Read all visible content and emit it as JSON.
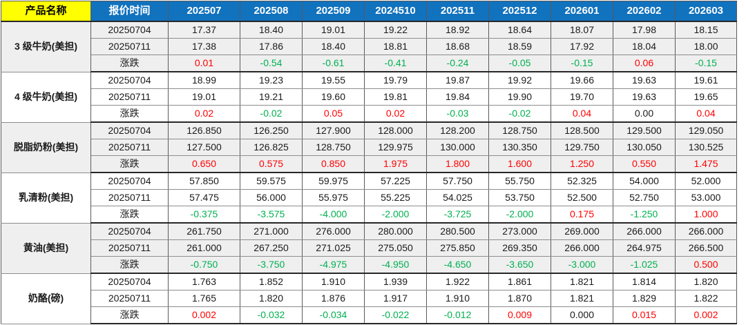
{
  "colors": {
    "header_bg": "#1172be",
    "header_text": "#ffffff",
    "product_header_bg": "#ffff00",
    "up_red": "#ff0000",
    "down_green": "#00b050",
    "neutral_black": "#1a1a1a",
    "band_gray": "#efefef"
  },
  "chart_data": {
    "type": "table",
    "product_header": "产品名称",
    "time_header": "报价时间",
    "period_headers": [
      "202507",
      "202508",
      "202509",
      "2024510",
      "202511",
      "202512",
      "202601",
      "202602",
      "202603"
    ],
    "change_row_label": "涨跌",
    "groups": [
      {
        "product": "3 级牛奶(美担)",
        "shaded": true,
        "rows": [
          {
            "label": "20250704",
            "type": "price",
            "values": [
              "17.37",
              "18.40",
              "19.01",
              "19.22",
              "18.92",
              "18.64",
              "18.07",
              "17.98",
              "18.15"
            ]
          },
          {
            "label": "20250711",
            "type": "price",
            "values": [
              "17.38",
              "17.86",
              "18.40",
              "18.81",
              "18.68",
              "18.59",
              "17.92",
              "18.04",
              "18.00"
            ]
          },
          {
            "label": "涨跌",
            "type": "change",
            "values": [
              "0.01",
              "-0.54",
              "-0.61",
              "-0.41",
              "-0.24",
              "-0.05",
              "-0.15",
              "0.06",
              "-0.15"
            ]
          }
        ]
      },
      {
        "product": "4 级牛奶(美担)",
        "shaded": false,
        "rows": [
          {
            "label": "20250704",
            "type": "price",
            "values": [
              "18.99",
              "19.23",
              "19.55",
              "19.79",
              "19.87",
              "19.92",
              "19.66",
              "19.63",
              "19.61"
            ]
          },
          {
            "label": "20250711",
            "type": "price",
            "values": [
              "19.01",
              "19.21",
              "19.60",
              "19.81",
              "19.84",
              "19.90",
              "19.70",
              "19.63",
              "19.65"
            ]
          },
          {
            "label": "涨跌",
            "type": "change",
            "values": [
              "0.02",
              "-0.02",
              "0.05",
              "0.02",
              "-0.03",
              "-0.02",
              "0.04",
              "0.00",
              "0.04"
            ]
          }
        ]
      },
      {
        "product": "脱脂奶粉(美担)",
        "shaded": true,
        "rows": [
          {
            "label": "20250704",
            "type": "price",
            "values": [
              "126.850",
              "126.250",
              "127.900",
              "128.000",
              "128.200",
              "128.750",
              "128.500",
              "129.500",
              "129.050"
            ]
          },
          {
            "label": "20250711",
            "type": "price",
            "values": [
              "127.500",
              "126.825",
              "128.750",
              "129.975",
              "130.000",
              "130.350",
              "129.750",
              "130.050",
              "130.525"
            ]
          },
          {
            "label": "涨跌",
            "type": "change",
            "values": [
              "0.650",
              "0.575",
              "0.850",
              "1.975",
              "1.800",
              "1.600",
              "1.250",
              "0.550",
              "1.475"
            ]
          }
        ]
      },
      {
        "product": "乳清粉(美担)",
        "shaded": false,
        "rows": [
          {
            "label": "20250704",
            "type": "price",
            "values": [
              "57.850",
              "59.575",
              "59.975",
              "57.225",
              "57.750",
              "55.750",
              "52.325",
              "54.000",
              "52.000"
            ]
          },
          {
            "label": "20250711",
            "type": "price",
            "values": [
              "57.475",
              "56.000",
              "55.975",
              "55.225",
              "54.025",
              "53.750",
              "52.500",
              "52.750",
              "53.000"
            ]
          },
          {
            "label": "涨跌",
            "type": "change",
            "values": [
              "-0.375",
              "-3.575",
              "-4.000",
              "-2.000",
              "-3.725",
              "-2.000",
              "0.175",
              "-1.250",
              "1.000"
            ]
          }
        ]
      },
      {
        "product": "黄油(美担)",
        "shaded": true,
        "rows": [
          {
            "label": "20250704",
            "type": "price",
            "values": [
              "261.750",
              "271.000",
              "276.000",
              "280.000",
              "280.500",
              "273.000",
              "269.000",
              "266.000",
              "266.000"
            ]
          },
          {
            "label": "20250711",
            "type": "price",
            "values": [
              "261.000",
              "267.250",
              "271.025",
              "275.050",
              "275.850",
              "269.350",
              "266.000",
              "264.975",
              "266.500"
            ]
          },
          {
            "label": "涨跌",
            "type": "change",
            "values": [
              "-0.750",
              "-3.750",
              "-4.975",
              "-4.950",
              "-4.650",
              "-3.650",
              "-3.000",
              "-1.025",
              "0.500"
            ]
          }
        ]
      },
      {
        "product": "奶酪(磅)",
        "shaded": false,
        "rows": [
          {
            "label": "20250704",
            "type": "price",
            "values": [
              "1.763",
              "1.852",
              "1.910",
              "1.939",
              "1.922",
              "1.861",
              "1.821",
              "1.814",
              "1.820"
            ]
          },
          {
            "label": "20250711",
            "type": "price",
            "values": [
              "1.765",
              "1.820",
              "1.876",
              "1.917",
              "1.910",
              "1.870",
              "1.821",
              "1.829",
              "1.822"
            ]
          },
          {
            "label": "涨跌",
            "type": "change",
            "values": [
              "0.002",
              "-0.032",
              "-0.034",
              "-0.022",
              "-0.012",
              "0.009",
              "0.000",
              "0.015",
              "0.002"
            ]
          }
        ]
      }
    ]
  }
}
